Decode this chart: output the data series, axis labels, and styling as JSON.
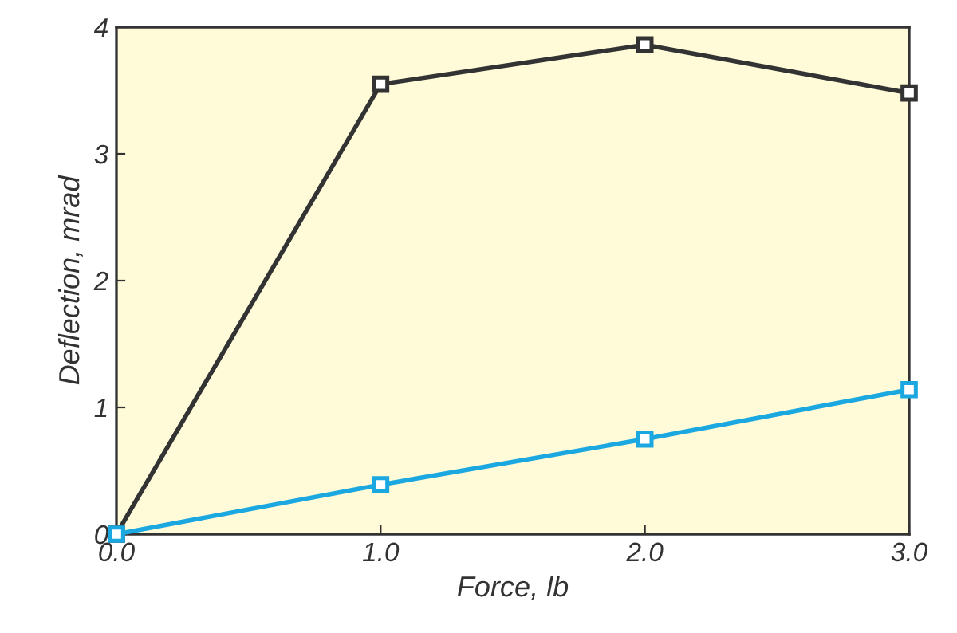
{
  "chart_data": {
    "type": "line",
    "xlabel": "Force, lb",
    "ylabel": "Deflection, mrad",
    "x": [
      0,
      1,
      2,
      3
    ],
    "series": [
      {
        "color": "#333333",
        "values": [
          0,
          3.55,
          3.86,
          3.48
        ]
      },
      {
        "color": "#1ba8e0",
        "values": [
          0,
          0.39,
          0.75,
          1.14
        ]
      }
    ],
    "xlim": [
      0,
      3
    ],
    "ylim": [
      0,
      4
    ],
    "xticks": [
      {
        "value": 0,
        "label": "0.0"
      },
      {
        "value": 1,
        "label": "1.0"
      },
      {
        "value": 2,
        "label": "2.0"
      },
      {
        "value": 3,
        "label": "3.0"
      }
    ],
    "yticks": [
      0,
      1,
      2,
      3,
      4
    ],
    "marker": "square",
    "line_style": "solid",
    "grid": false,
    "legend": false
  }
}
